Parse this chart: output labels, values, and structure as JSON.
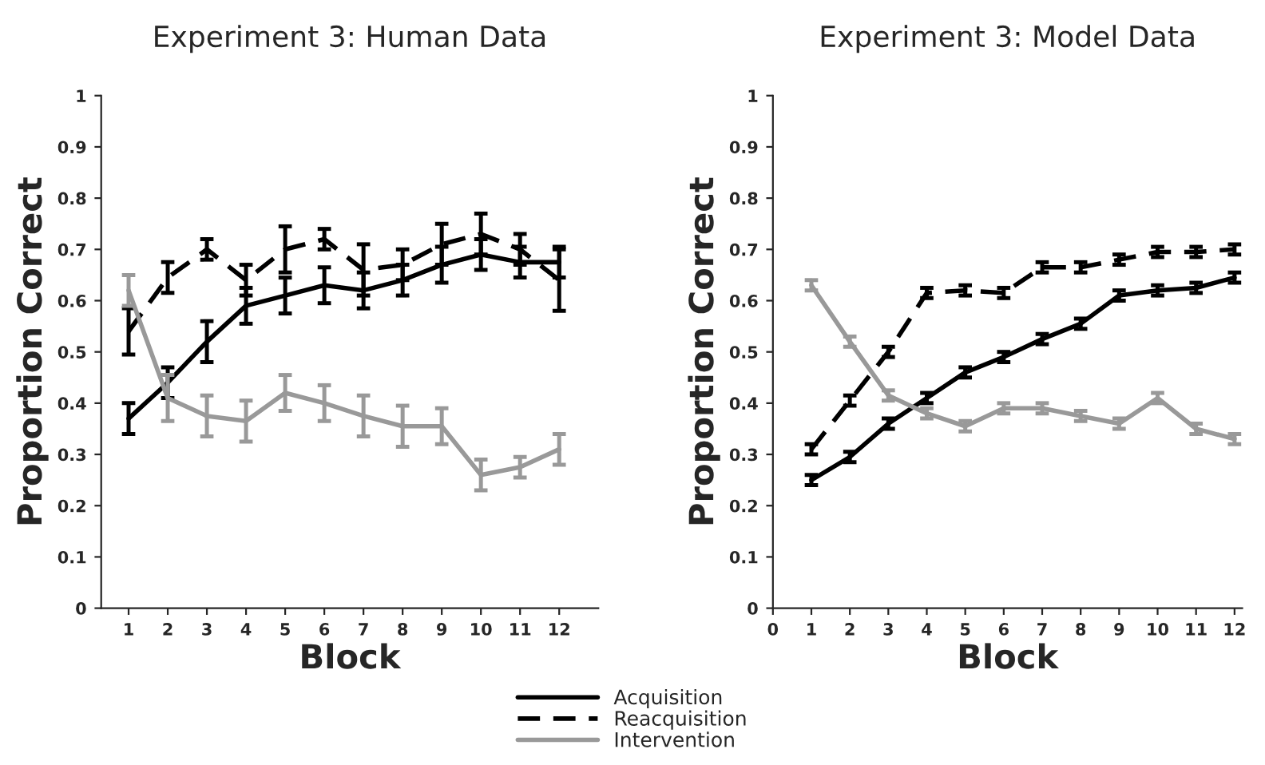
{
  "chart_data": [
    {
      "type": "line",
      "title": "Experiment 3: Human Data",
      "xlabel": "Block",
      "ylabel": "Proportion Correct",
      "x": [
        1,
        2,
        3,
        4,
        5,
        6,
        7,
        8,
        9,
        10,
        11,
        12
      ],
      "xlim": [
        0.3,
        13
      ],
      "xticks": [
        1,
        2,
        3,
        4,
        5,
        6,
        7,
        8,
        9,
        10,
        11,
        12
      ],
      "ylim": [
        0,
        1
      ],
      "yticks": [
        0,
        0.1,
        0.2,
        0.3,
        0.4,
        0.5,
        0.6,
        0.7,
        0.8,
        0.9,
        1
      ],
      "legend": "bottom",
      "grid": false,
      "marker": "none",
      "series": [
        {
          "name": "Acquisition",
          "color": "#000000",
          "line_style": "solid",
          "values": [
            0.37,
            0.44,
            0.52,
            0.59,
            0.61,
            0.63,
            0.62,
            0.64,
            0.67,
            0.69,
            0.675,
            0.675
          ],
          "errors": [
            0.03,
            0.03,
            0.04,
            0.035,
            0.035,
            0.035,
            0.035,
            0.03,
            0.035,
            0.03,
            0.03,
            0.03
          ]
        },
        {
          "name": "Reacquisition",
          "color": "#000000",
          "line_style": "dashed",
          "values": [
            0.54,
            0.645,
            0.7,
            0.64,
            0.7,
            0.72,
            0.66,
            0.67,
            0.71,
            0.73,
            0.7,
            0.64
          ],
          "errors": [
            0.045,
            0.03,
            0.02,
            0.03,
            0.045,
            0.02,
            0.05,
            0.03,
            0.04,
            0.04,
            0.03,
            0.06
          ]
        },
        {
          "name": "Intervention",
          "color": "#999999",
          "line_style": "solid",
          "values": [
            0.62,
            0.41,
            0.375,
            0.365,
            0.42,
            0.4,
            0.375,
            0.355,
            0.355,
            0.26,
            0.275,
            0.31
          ],
          "errors": [
            0.03,
            0.045,
            0.04,
            0.04,
            0.035,
            0.035,
            0.04,
            0.04,
            0.035,
            0.03,
            0.02,
            0.03
          ]
        }
      ]
    },
    {
      "type": "line",
      "title": "Experiment 3: Model Data",
      "xlabel": "Block",
      "ylabel": "Proportion Correct",
      "x": [
        1,
        2,
        3,
        4,
        5,
        6,
        7,
        8,
        9,
        10,
        11,
        12
      ],
      "xlim": [
        0,
        12.2
      ],
      "xticks": [
        0,
        1,
        2,
        3,
        4,
        5,
        6,
        7,
        8,
        9,
        10,
        11,
        12
      ],
      "ylim": [
        0,
        1
      ],
      "yticks": [
        0,
        0.1,
        0.2,
        0.3,
        0.4,
        0.5,
        0.6,
        0.7,
        0.8,
        0.9,
        1
      ],
      "grid": false,
      "marker": "none",
      "series": [
        {
          "color": "#000000",
          "line_style": "solid",
          "values": [
            0.25,
            0.295,
            0.36,
            0.41,
            0.46,
            0.49,
            0.525,
            0.555,
            0.61,
            0.62,
            0.625,
            0.645
          ],
          "errors": [
            0.01,
            0.01,
            0.01,
            0.01,
            0.01,
            0.01,
            0.01,
            0.01,
            0.01,
            0.01,
            0.01,
            0.01
          ]
        },
        {
          "color": "#000000",
          "line_style": "dashed",
          "values": [
            0.31,
            0.405,
            0.5,
            0.615,
            0.62,
            0.615,
            0.665,
            0.665,
            0.68,
            0.695,
            0.695,
            0.7
          ],
          "errors": [
            0.01,
            0.01,
            0.01,
            0.01,
            0.01,
            0.01,
            0.01,
            0.01,
            0.01,
            0.01,
            0.01,
            0.01
          ]
        },
        {
          "color": "#999999",
          "line_style": "solid",
          "values": [
            0.63,
            0.52,
            0.415,
            0.38,
            0.355,
            0.39,
            0.39,
            0.375,
            0.36,
            0.41,
            0.35,
            0.33
          ],
          "errors": [
            0.01,
            0.01,
            0.01,
            0.01,
            0.01,
            0.01,
            0.01,
            0.01,
            0.01,
            0.01,
            0.01,
            0.01
          ]
        }
      ]
    }
  ]
}
